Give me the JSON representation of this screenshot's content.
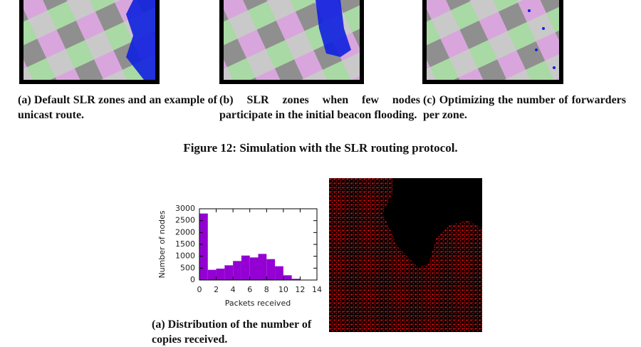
{
  "figure12": {
    "subcaptions": [
      "(a) Default SLR zones and an example of unicast route.",
      "(b) SLR zones when few nodes participate in the initial beacon flooding.",
      "(c) Optimizing the number of forwarders per zone."
    ],
    "caption": "Figure 12: Simulation with the SLR routing protocol."
  },
  "figure13": {
    "subcaption": "(a) Distribution of the number of copies received."
  },
  "chart_data": {
    "type": "histogram",
    "xlabel": "Packets received",
    "ylabel": "Number of nodes",
    "bins": [
      0,
      1,
      2,
      3,
      4,
      5,
      6,
      7,
      8,
      9,
      10,
      11,
      12
    ],
    "values": [
      2800,
      430,
      480,
      620,
      800,
      1030,
      950,
      1100,
      880,
      580,
      200,
      50
    ],
    "color": "#9400d3",
    "xlim": [
      0,
      14
    ],
    "ylim": [
      0,
      3000
    ],
    "xticks": [
      0,
      2,
      4,
      6,
      8,
      10,
      12,
      14
    ],
    "yticks": [
      0,
      500,
      1000,
      1500,
      2000,
      2500,
      3000
    ]
  }
}
